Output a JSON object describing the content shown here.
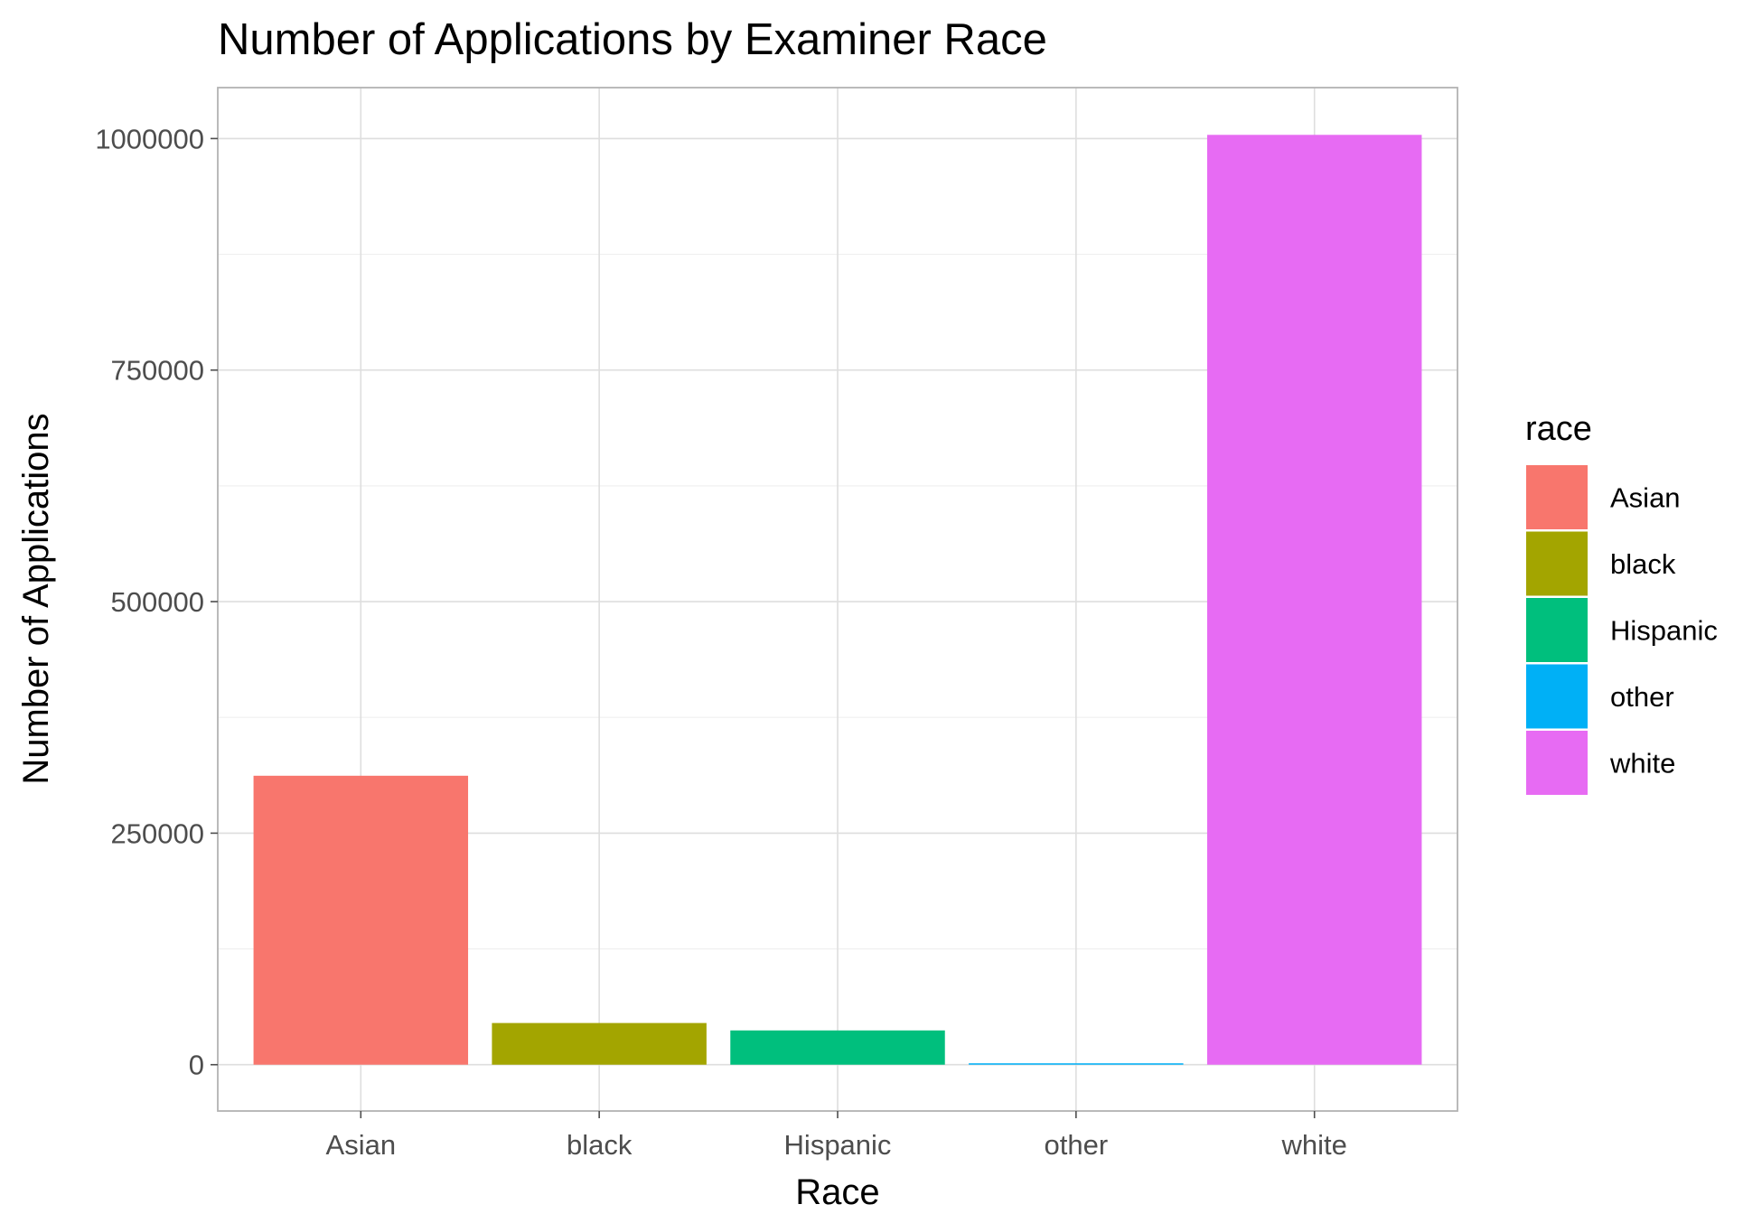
{
  "chart_data": {
    "type": "bar",
    "title": "Number of Applications by Examiner Race",
    "xlabel": "Race",
    "ylabel": "Number of Applications",
    "categories": [
      "Asian",
      "black",
      "Hispanic",
      "other",
      "white"
    ],
    "values": [
      312000,
      45000,
      37000,
      1500,
      1004000
    ],
    "colors": [
      "#F8766D",
      "#A3A500",
      "#00BF7D",
      "#00B0F6",
      "#E76BF3"
    ],
    "ylim": [
      -50000,
      1055000
    ],
    "yticks": [
      0,
      250000,
      500000,
      750000,
      1000000
    ],
    "ytick_labels": [
      "0",
      "250000",
      "500000",
      "750000",
      "1000000"
    ],
    "grid": true,
    "legend": {
      "title": "race",
      "position": "right",
      "entries": [
        "Asian",
        "black",
        "Hispanic",
        "other",
        "white"
      ]
    }
  }
}
